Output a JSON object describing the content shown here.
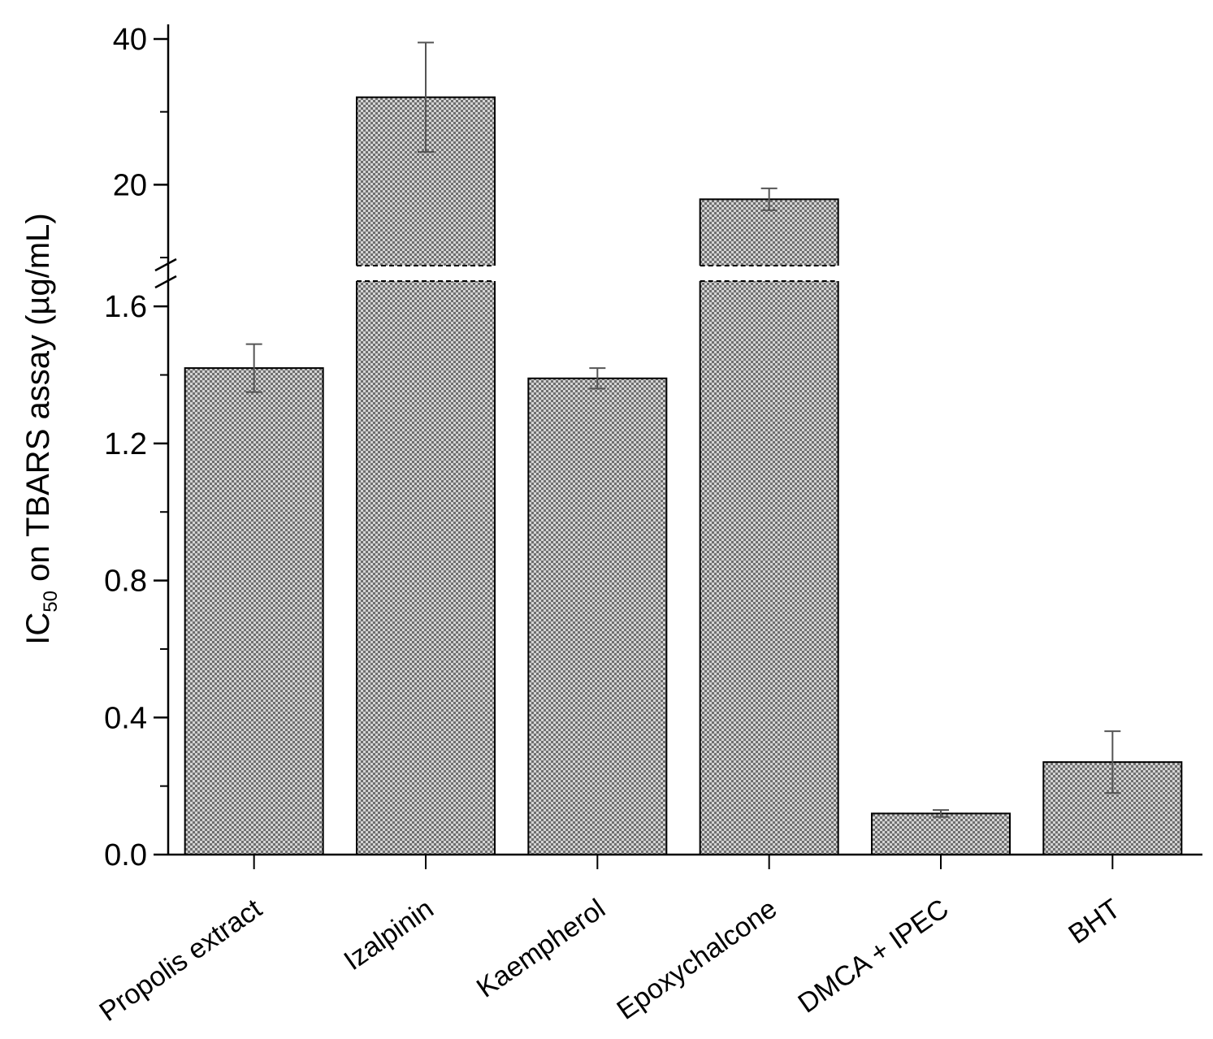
{
  "chart_data": {
    "type": "bar",
    "categories": [
      "Propolis extract",
      "Izalpinin",
      "Kaempherol",
      "Epoxychalcone",
      "DMCA + IPEC",
      "BHT"
    ],
    "values": [
      1.42,
      32.0,
      1.39,
      18.0,
      0.12,
      0.27
    ],
    "errors": [
      0.07,
      7.5,
      0.03,
      1.5,
      0.01,
      0.09
    ],
    "ylabel": {
      "prefix": "IC",
      "subscript": "50",
      "suffix": " on TBARS assay (µg/mL)"
    },
    "ylim_lower": [
      0,
      1.7
    ],
    "ylim_upper": [
      8,
      42
    ],
    "yticks_lower": [
      "0.0",
      "0.4",
      "0.8",
      "1.2",
      "1.6"
    ],
    "yticks_upper": [
      "20",
      "40"
    ],
    "broken_axis": true,
    "bar_pattern": "checkered",
    "colors": {
      "bar_dark": "#6f6f6f",
      "bar_light": "#d4d4d4",
      "axis": "#000000"
    }
  }
}
